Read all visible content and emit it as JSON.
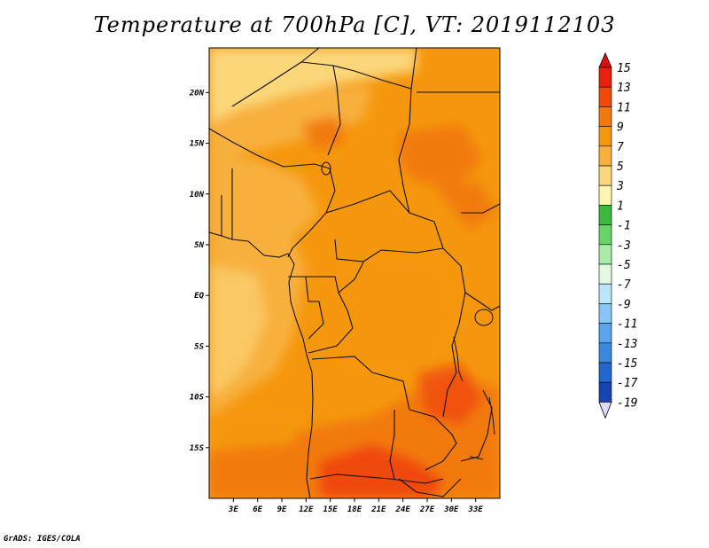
{
  "map": {
    "title": "Temperature at 700hPa [C], VT: 2019112103",
    "variable": "Temperature",
    "level": "700hPa",
    "units": "C",
    "valid_time": "2019112103",
    "credit": "GrADS: IGES/COLA",
    "lat_ticks": [
      {
        "value": 20,
        "label": "20N"
      },
      {
        "value": 15,
        "label": "15N"
      },
      {
        "value": 10,
        "label": "10N"
      },
      {
        "value": 5,
        "label": "5N"
      },
      {
        "value": 0,
        "label": "EQ"
      },
      {
        "value": -5,
        "label": "5S"
      },
      {
        "value": -10,
        "label": "10S"
      },
      {
        "value": -15,
        "label": "15S"
      }
    ],
    "lon_ticks": [
      {
        "value": 3,
        "label": "3E"
      },
      {
        "value": 6,
        "label": "6E"
      },
      {
        "value": 9,
        "label": "9E"
      },
      {
        "value": 12,
        "label": "12E"
      },
      {
        "value": 15,
        "label": "15E"
      },
      {
        "value": 18,
        "label": "18E"
      },
      {
        "value": 21,
        "label": "21E"
      },
      {
        "value": 24,
        "label": "24E"
      },
      {
        "value": 27,
        "label": "27E"
      },
      {
        "value": 30,
        "label": "30E"
      },
      {
        "value": 33,
        "label": "33E"
      }
    ]
  },
  "colorbar": {
    "levels": [
      {
        "label": "15",
        "value": 15,
        "color": "#e8210f"
      },
      {
        "label": "13",
        "value": 13,
        "color": "#f04a0a"
      },
      {
        "label": "11",
        "value": 11,
        "color": "#f27a0c"
      },
      {
        "label": "9",
        "value": 9,
        "color": "#f5970e"
      },
      {
        "label": "7",
        "value": 7,
        "color": "#f8b03c"
      },
      {
        "label": "5",
        "value": 5,
        "color": "#fbd77a"
      },
      {
        "label": "3",
        "value": 3,
        "color": "#fef6b0"
      },
      {
        "label": "1",
        "value": 1,
        "color": "#3cb83c"
      },
      {
        "label": "-1",
        "value": -1,
        "color": "#66d466"
      },
      {
        "label": "-3",
        "value": -3,
        "color": "#a8eba8"
      },
      {
        "label": "-5",
        "value": -5,
        "color": "#e1fae1"
      },
      {
        "label": "-7",
        "value": -7,
        "color": "#bde5fa"
      },
      {
        "label": "-9",
        "value": -9,
        "color": "#88c6f5"
      },
      {
        "label": "-11",
        "value": -11,
        "color": "#5aa4ec"
      },
      {
        "label": "-13",
        "value": -13,
        "color": "#3a86e0"
      },
      {
        "label": "-15",
        "value": -15,
        "color": "#2266d0"
      },
      {
        "label": "-17",
        "value": -17,
        "color": "#1644b0"
      },
      {
        "label": "-19",
        "value": -19,
        "color": "#0d1e7a"
      }
    ],
    "bottom_cap_color": "#dcdcfa",
    "top_cap_color": "#d81010"
  }
}
